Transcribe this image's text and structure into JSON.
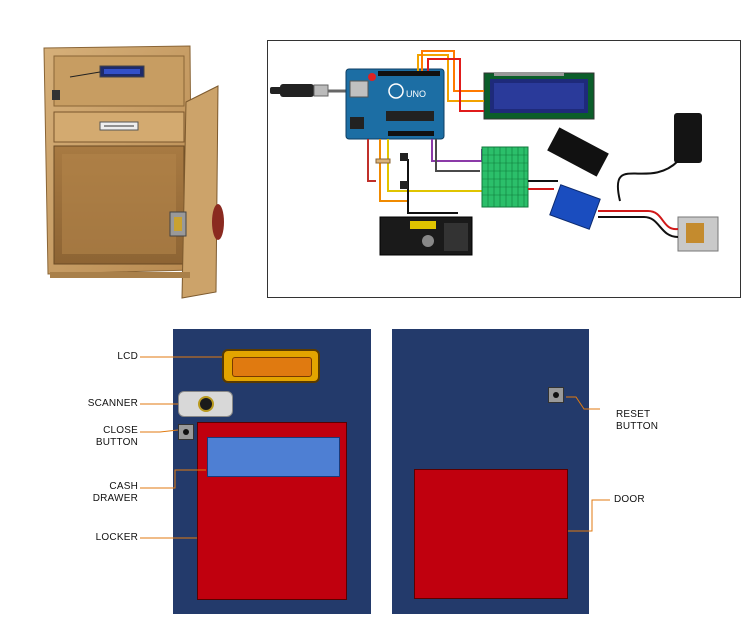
{
  "labels": {
    "lcd": "LCD",
    "scanner": "SCANNER",
    "close_button": "CLOSE\nBUTTON",
    "cash_drawer": "CASH\nDRAWER",
    "locker": "LOCKER",
    "reset_button": "RESET\nBUTTON",
    "door": "DOOR"
  },
  "circuit": {
    "board_label": "UNO"
  },
  "colors": {
    "panel_navy": "#233a6b",
    "locker_red": "#c0000e",
    "drawer_blue": "#4e7fd3",
    "lcd_orange": "#e07a10",
    "lcd_frame": "#e3a400",
    "wood": "#c9a066"
  }
}
